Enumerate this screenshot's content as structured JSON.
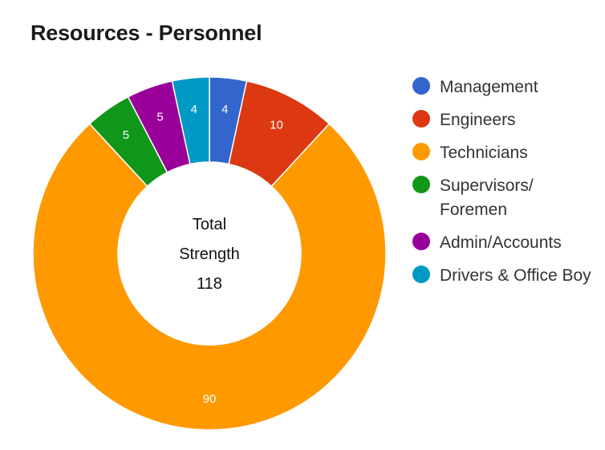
{
  "chart_data": {
    "type": "pie",
    "title": "Resources - Personnel",
    "donut": true,
    "center_text": [
      "Total",
      "Strength",
      "118"
    ],
    "legend_position": "right",
    "slices": [
      {
        "name": "Management",
        "value": 4,
        "color": "#3366cc"
      },
      {
        "name": "Engineers",
        "value": 10,
        "color": "#dc3912"
      },
      {
        "name": "Technicians",
        "value": 90,
        "color": "#ff9900"
      },
      {
        "name": "Supervisors/ Foremen",
        "value": 5,
        "color": "#109618"
      },
      {
        "name": "Admin/Accounts",
        "value": 5,
        "color": "#990099"
      },
      {
        "name": "Drivers & Office Boy",
        "value": 4,
        "color": "#0099c6"
      }
    ]
  }
}
